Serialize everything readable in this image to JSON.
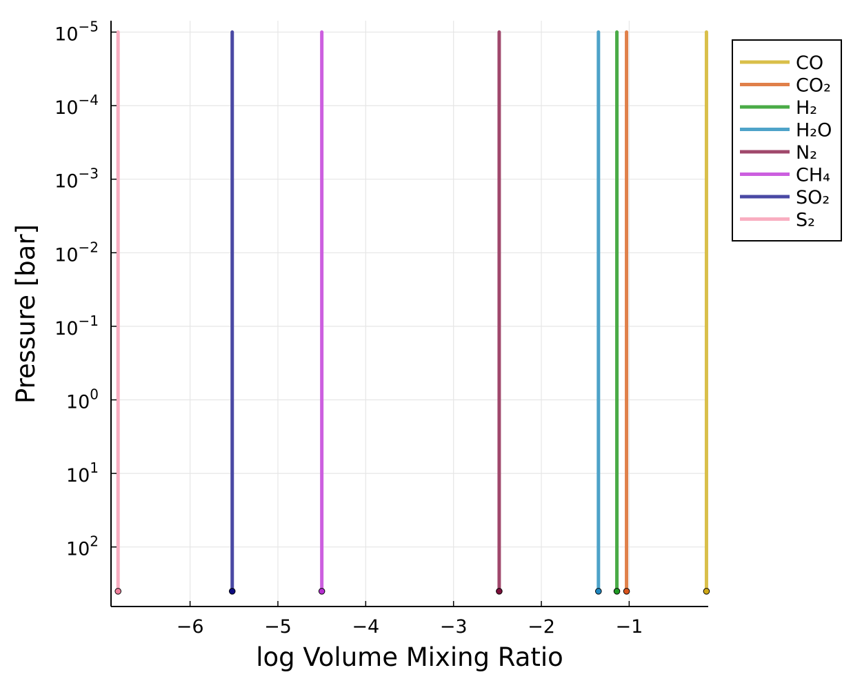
{
  "chart_data": {
    "type": "line",
    "title": "",
    "xlabel": "log Volume Mixing Ratio",
    "ylabel": "Pressure [bar]",
    "x_ticks": [
      -6,
      -5,
      -4,
      -3,
      -2,
      -1
    ],
    "x_tick_labels": [
      "−6",
      "−5",
      "−4",
      "−3",
      "−2",
      "−1"
    ],
    "y_scale": "log",
    "y_inverted": true,
    "y_ticks": [
      {
        "base": "10",
        "exp": "−5",
        "value": 1e-05
      },
      {
        "base": "10",
        "exp": "−4",
        "value": 0.0001
      },
      {
        "base": "10",
        "exp": "−3",
        "value": 0.001
      },
      {
        "base": "10",
        "exp": "−2",
        "value": 0.01
      },
      {
        "base": "10",
        "exp": "−1",
        "value": 0.1
      },
      {
        "base": "10",
        "exp": "0",
        "value": 1
      },
      {
        "base": "10",
        "exp": "1",
        "value": 10
      },
      {
        "base": "10",
        "exp": "2",
        "value": 100
      }
    ],
    "xlim": [
      -6.9,
      -0.1
    ],
    "ylim": [
      1e-05,
      800
    ],
    "grid": true,
    "legend_position": "outer top-right",
    "series": [
      {
        "name": "CO",
        "color": "#d9bf4a",
        "marker_color": "#cfa817",
        "x": -0.12,
        "p_top": 1e-05,
        "p_bottom": 400
      },
      {
        "name": "CO₂",
        "color": "#e0804a",
        "marker_color": "#d9531c",
        "x": -1.03,
        "p_top": 1e-05,
        "p_bottom": 400
      },
      {
        "name": "H₂",
        "color": "#4aab47",
        "marker_color": "#1f9a24",
        "x": -1.14,
        "p_top": 1e-05,
        "p_bottom": 400
      },
      {
        "name": "H₂O",
        "color": "#4ea3c9",
        "marker_color": "#1f86bf",
        "x": -1.35,
        "p_top": 1e-05,
        "p_bottom": 400
      },
      {
        "name": "N₂",
        "color": "#a0486c",
        "marker_color": "#7a0f3a",
        "x": -2.48,
        "p_top": 1e-05,
        "p_bottom": 400
      },
      {
        "name": "CH₄",
        "color": "#cc5fdf",
        "marker_color": "#b62fd0",
        "x": -4.5,
        "p_top": 1e-05,
        "p_bottom": 400
      },
      {
        "name": "SO₂",
        "color": "#4a49a4",
        "marker_color": "#0d0c80",
        "x": -5.52,
        "p_top": 1e-05,
        "p_bottom": 400
      },
      {
        "name": "S₂",
        "color": "#f9aec1",
        "marker_color": "#ef7f9b",
        "x": -6.82,
        "p_top": 1e-05,
        "p_bottom": 400
      }
    ]
  }
}
